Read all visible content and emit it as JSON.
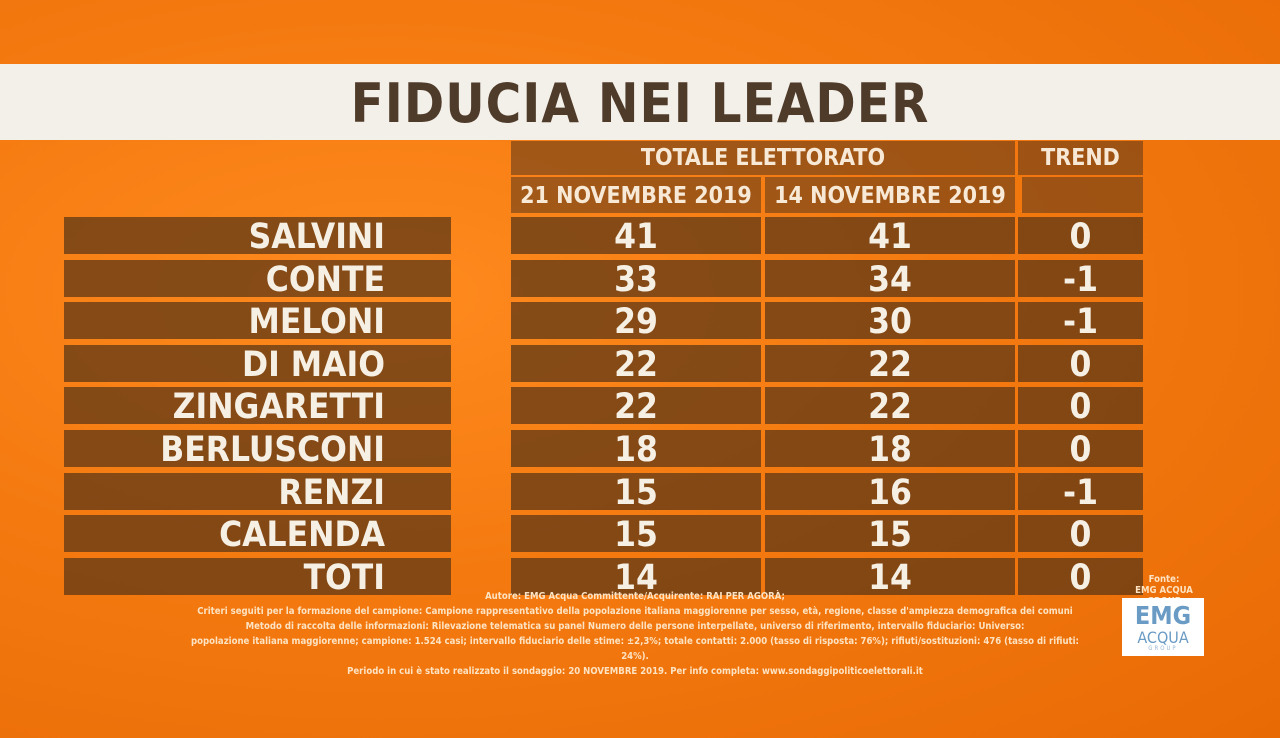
{
  "title": "FIDUCIA NEI LEADER",
  "chart_data": {
    "type": "table",
    "group_header": "TOTALE ELETTORATO",
    "trend_header": "TREND",
    "columns": [
      "21 NOVEMBRE 2019",
      "14 NOVEMBRE 2019"
    ],
    "rows": [
      {
        "name": "SALVINI",
        "v1": "41",
        "v2": "41",
        "trend": "0"
      },
      {
        "name": "CONTE",
        "v1": "33",
        "v2": "34",
        "trend": "-1"
      },
      {
        "name": "MELONI",
        "v1": "29",
        "v2": "30",
        "trend": "-1"
      },
      {
        "name": "DI MAIO",
        "v1": "22",
        "v2": "22",
        "trend": "0"
      },
      {
        "name": "ZINGARETTI",
        "v1": "22",
        "v2": "22",
        "trend": "0"
      },
      {
        "name": "BERLUSCONI",
        "v1": "18",
        "v2": "18",
        "trend": "0"
      },
      {
        "name": "RENZI",
        "v1": "15",
        "v2": "16",
        "trend": "-1"
      },
      {
        "name": "CALENDA",
        "v1": "15",
        "v2": "15",
        "trend": "0"
      },
      {
        "name": "TOTI",
        "v1": "14",
        "v2": "14",
        "trend": "0"
      }
    ]
  },
  "footer": {
    "line1": "Autore: EMG Acqua Committente/Acquirente: RAI PER AGORÀ;",
    "line2": "Criteri seguiti per la formazione del campione: Campione rappresentativo della popolazione italiana maggiorenne per sesso, età, regione, classe d'ampiezza demografica dei comuni",
    "line3": "Metodo di raccolta delle informazioni: Rilevazione telematica su panel Numero delle persone interpellate, universo di riferimento, intervallo fiduciario: Universo:",
    "line4": "popolazione italiana maggiorenne; campione: 1.524 casi; intervallo fiduciario delle stime: ±2,3%; totale contatti: 2.000 (tasso di risposta: 76%); rifiuti/sostituzioni: 476 (tasso di rifiuti: 24%).",
    "line5": "Periodo in cui è stato realizzato il sondaggio: 20 NOVEMBRE 2019. Per info completa: www.sondaggipoliticoelettorali.it"
  },
  "source": {
    "line1": "Fonte:",
    "line2": "EMG ACQUA GROUP",
    "logo_top": "EMG",
    "logo_mid": "ACQUA",
    "logo_bottom": "GROUP"
  }
}
